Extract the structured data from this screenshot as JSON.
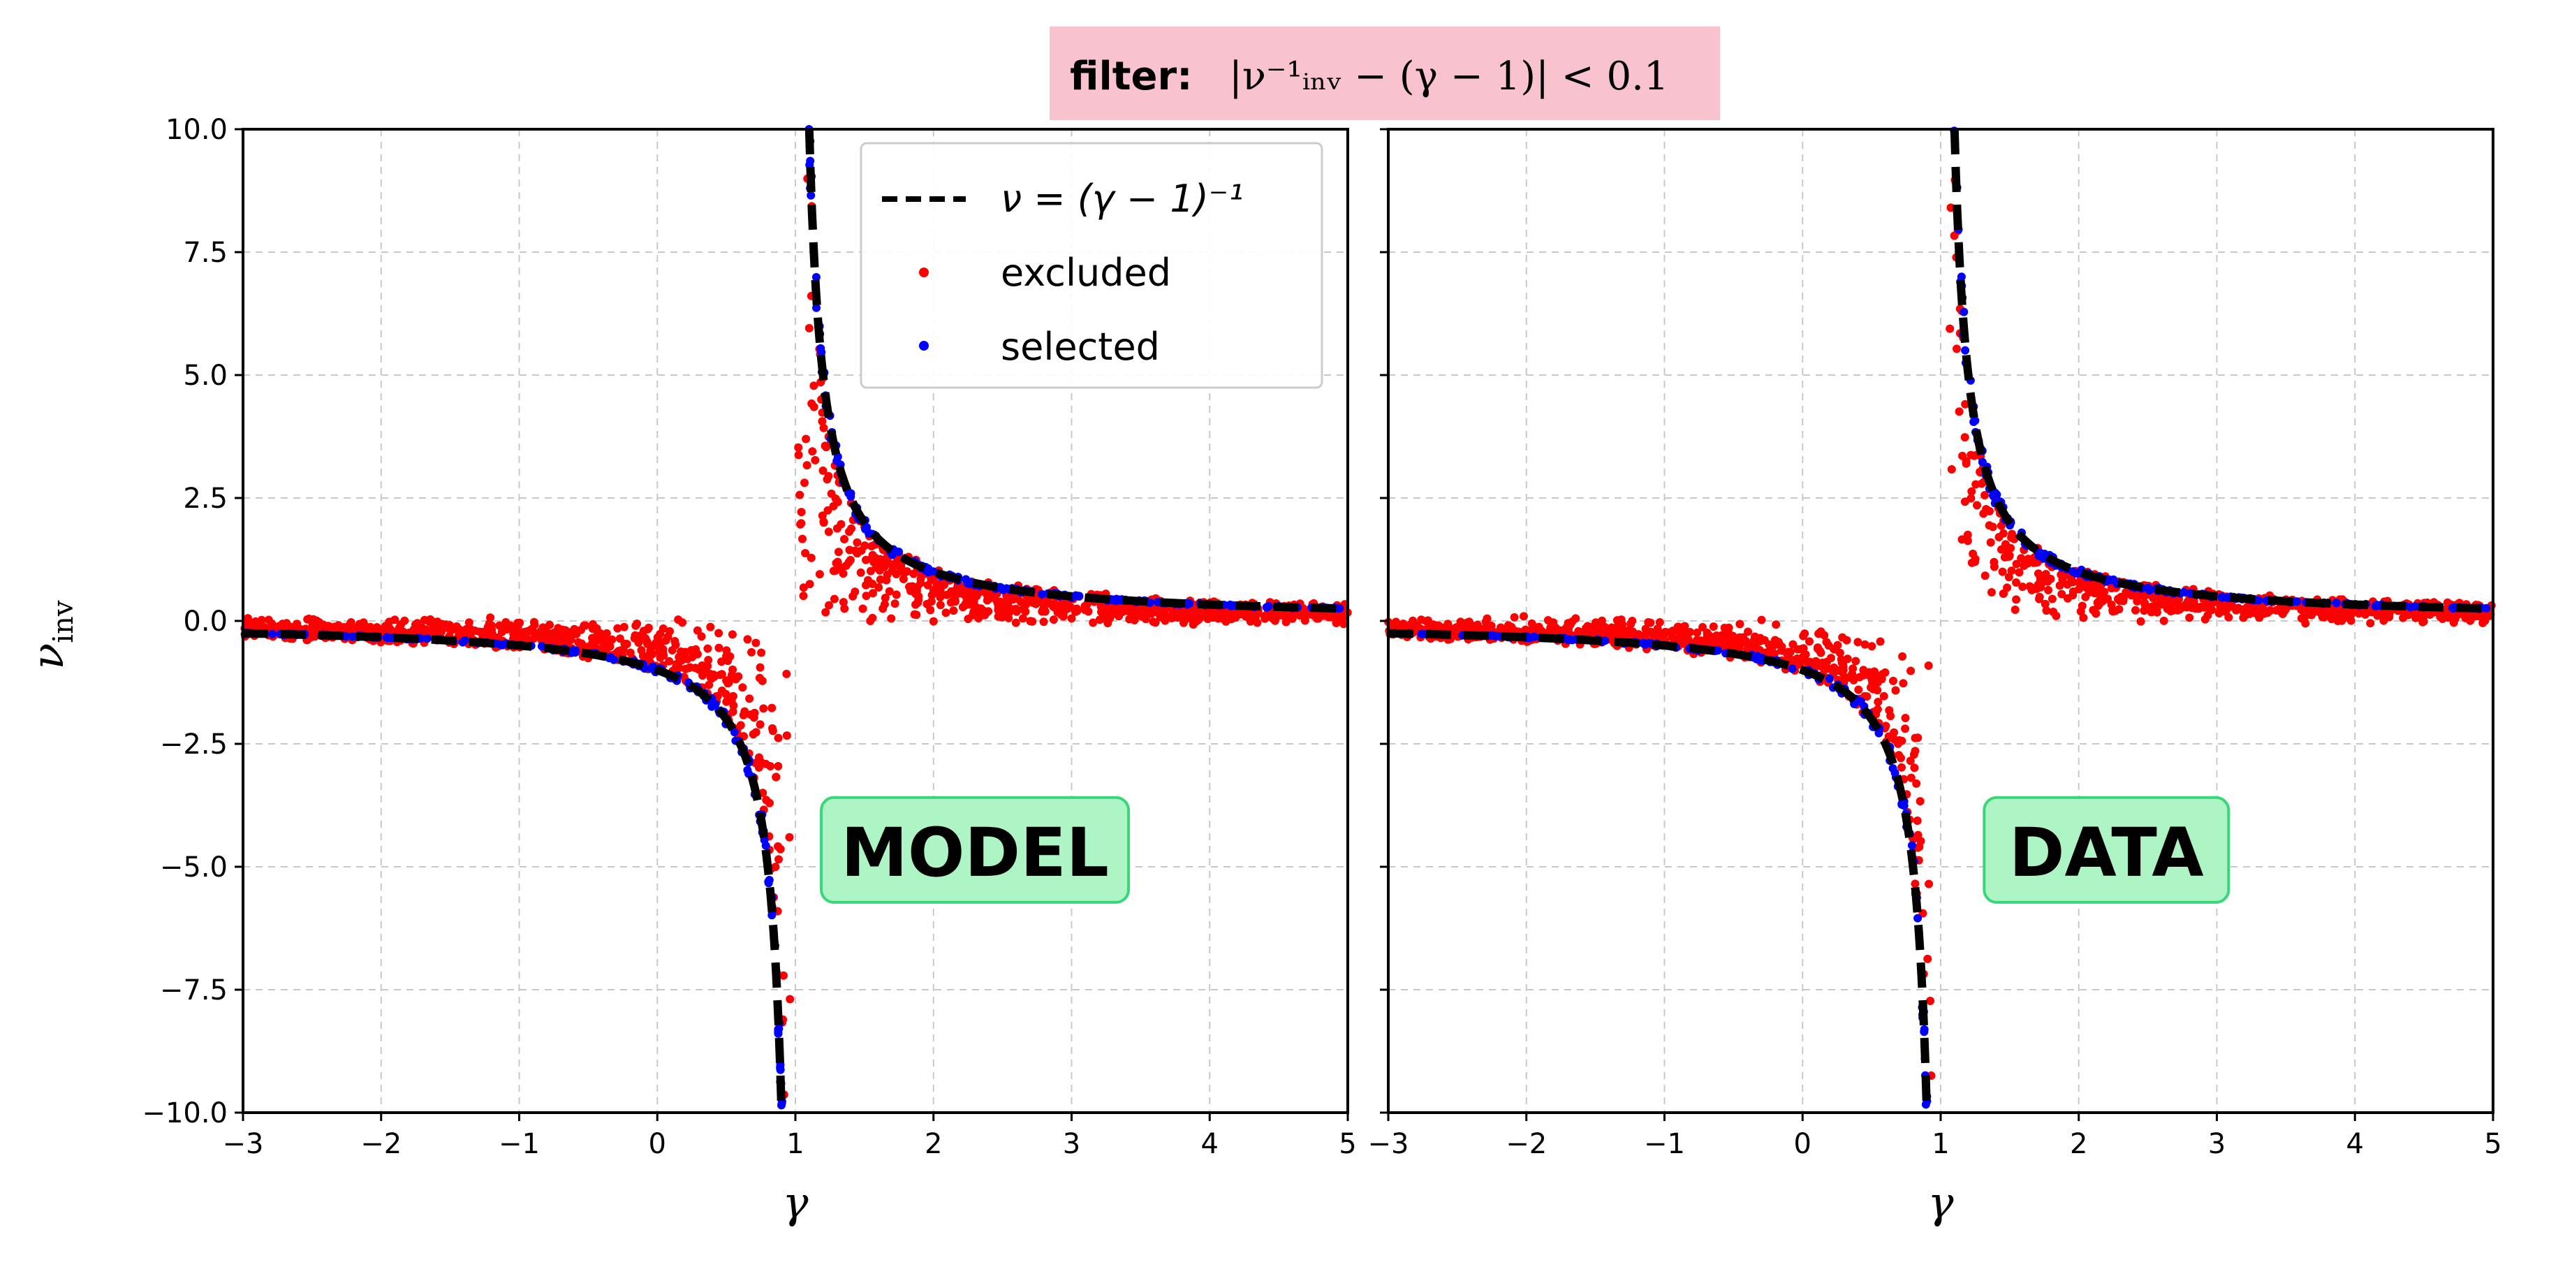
{
  "figure": {
    "title_prefix": "filter:",
    "title_formula": "|ν⁻¹ᵢₙᵥ − (γ − 1)| < 0.1",
    "title_bg": "#f8c3ce",
    "tag_bg": "#aef5c6",
    "tag_border": "#39d67a"
  },
  "chart_data": [
    {
      "type": "scatter",
      "panel_label": "MODEL",
      "xlabel": "γ",
      "ylabel": "ν",
      "ylabel_sub": "inv",
      "xlim": [
        -3,
        5
      ],
      "ylim": [
        -10,
        10
      ],
      "xticks": [
        -3,
        -2,
        -1,
        0,
        1,
        2,
        3,
        4,
        5
      ],
      "yticks": [
        -10,
        -7.5,
        -5,
        -2.5,
        0,
        2.5,
        5,
        7.5,
        10
      ],
      "grid": true,
      "legend_position": "top-center",
      "series": [
        {
          "name": "ν = (γ − 1)⁻¹",
          "kind": "dashed-line",
          "color": "#000000",
          "formula": "1/(x-1)"
        },
        {
          "name": "excluded",
          "kind": "points",
          "color": "#ff0000",
          "shape": "spread-band around curve, fills between curve and 0"
        },
        {
          "name": "selected",
          "kind": "points",
          "color": "#0000ff",
          "shape": "on curve, |ν⁻¹ − (γ−1)| < 0.1"
        }
      ]
    },
    {
      "type": "scatter",
      "panel_label": "DATA",
      "xlabel": "γ",
      "xlim": [
        -3,
        5
      ],
      "ylim": [
        -10,
        10
      ],
      "xticks": [
        -3,
        -2,
        -1,
        0,
        1,
        2,
        3,
        4,
        5
      ],
      "yticks": [
        -10,
        -7.5,
        -5,
        -2.5,
        0,
        2.5,
        5,
        7.5,
        10
      ],
      "grid": true,
      "series": [
        {
          "name": "ν = (γ − 1)⁻¹",
          "kind": "dashed-line",
          "color": "#000000",
          "formula": "1/(x-1)"
        },
        {
          "name": "excluded",
          "kind": "points",
          "color": "#ff0000"
        },
        {
          "name": "selected",
          "kind": "points",
          "color": "#0000ff"
        }
      ]
    }
  ],
  "legend": {
    "items": [
      {
        "label": "ν = (γ − 1)⁻¹",
        "kind": "line",
        "color": "#000000"
      },
      {
        "label": "excluded",
        "kind": "dot",
        "color": "#ff0000"
      },
      {
        "label": "selected",
        "kind": "dot",
        "color": "#0000ff"
      }
    ]
  }
}
